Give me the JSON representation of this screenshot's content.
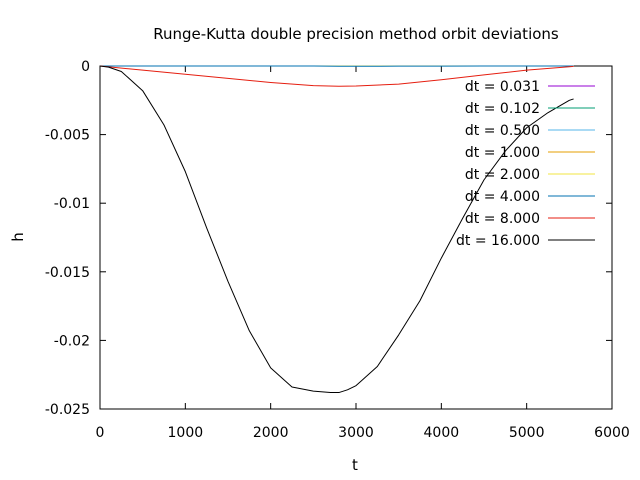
{
  "chart_data": {
    "type": "line",
    "title": "Runge-Kutta double precision method orbit deviations",
    "xlabel": "t",
    "ylabel": "h",
    "xlim": [
      0,
      6000
    ],
    "ylim": [
      -0.025,
      0
    ],
    "xticks": [
      0,
      1000,
      2000,
      3000,
      4000,
      5000,
      6000
    ],
    "xtick_labels": [
      "0",
      "1000",
      "2000",
      "3000",
      "4000",
      "5000",
      "6000"
    ],
    "yticks": [
      0,
      -0.005,
      -0.01,
      -0.015,
      -0.02,
      -0.025
    ],
    "ytick_labels": [
      "0",
      "-0.005",
      "-0.01",
      "-0.015",
      "-0.02",
      "-0.025"
    ],
    "grid": false,
    "legend_position": "top-right",
    "series": [
      {
        "name": "dt = 0.031",
        "color": "#9400d3",
        "x": [
          0,
          500,
          1000,
          1500,
          2000,
          2500,
          2800,
          3000,
          3500,
          4000,
          4500,
          5000,
          5500,
          5550
        ],
        "y": [
          0,
          0,
          0,
          0,
          0,
          0,
          0,
          0,
          0,
          0,
          0,
          0,
          0,
          0
        ]
      },
      {
        "name": "dt = 0.102",
        "color": "#009e73",
        "x": [
          0,
          500,
          1000,
          1500,
          2000,
          2500,
          2800,
          3000,
          3500,
          4000,
          4500,
          5000,
          5500,
          5550
        ],
        "y": [
          0,
          0,
          0,
          0,
          0,
          0,
          0,
          0,
          0,
          0,
          0,
          0,
          0,
          0
        ]
      },
      {
        "name": "dt = 0.500",
        "color": "#56b4e9",
        "x": [
          0,
          500,
          1000,
          1500,
          2000,
          2500,
          2800,
          3000,
          3500,
          4000,
          4500,
          5000,
          5500,
          5550
        ],
        "y": [
          0,
          0,
          0,
          0,
          0,
          0,
          0,
          0,
          0,
          0,
          0,
          0,
          0,
          0
        ]
      },
      {
        "name": "dt = 1.000",
        "color": "#e69f00",
        "x": [
          0,
          500,
          1000,
          1500,
          2000,
          2500,
          2800,
          3000,
          3500,
          4000,
          4500,
          5000,
          5500,
          5550
        ],
        "y": [
          0,
          0,
          0,
          0,
          0,
          0,
          0,
          0,
          0,
          0,
          0,
          0,
          0,
          0
        ]
      },
      {
        "name": "dt = 2.000",
        "color": "#f0e442",
        "x": [
          0,
          500,
          1000,
          1500,
          2000,
          2500,
          2800,
          3000,
          3500,
          4000,
          4500,
          5000,
          5500,
          5550
        ],
        "y": [
          0,
          0,
          0,
          0,
          0,
          0,
          0,
          0,
          0,
          0,
          0,
          0,
          0,
          0
        ]
      },
      {
        "name": "dt = 4.000",
        "color": "#0072b2",
        "x": [
          0,
          500,
          1000,
          1500,
          2000,
          2500,
          2800,
          3000,
          3500,
          4000,
          4500,
          5000,
          5500,
          5550
        ],
        "y": [
          0,
          0,
          0,
          0,
          0,
          0,
          -2e-05,
          -2e-05,
          -1e-05,
          -1e-05,
          0,
          0,
          0,
          0
        ]
      },
      {
        "name": "dt = 8.000",
        "color": "#e51e10",
        "x": [
          0,
          500,
          1000,
          1500,
          2000,
          2500,
          2800,
          3000,
          3500,
          4000,
          4500,
          5000,
          5500,
          5550
        ],
        "y": [
          0,
          -0.0003,
          -0.0006,
          -0.0009,
          -0.0012,
          -0.00143,
          -0.00148,
          -0.00146,
          -0.00132,
          -0.001,
          -0.00065,
          -0.0003,
          -5e-05,
          -3e-05
        ]
      },
      {
        "name": "dt = 16.000",
        "color": "#000000",
        "x": [
          0,
          100,
          250,
          500,
          750,
          1000,
          1250,
          1500,
          1750,
          2000,
          2250,
          2500,
          2700,
          2800,
          2900,
          3000,
          3250,
          3500,
          3750,
          4000,
          4250,
          4500,
          4750,
          5000,
          5250,
          5500,
          5550
        ],
        "y": [
          0,
          -8e-05,
          -0.0004,
          -0.0018,
          -0.0043,
          -0.0077,
          -0.0118,
          -0.0157,
          -0.0193,
          -0.022,
          -0.0234,
          -0.0237,
          -0.0238,
          -0.0238,
          -0.0236,
          -0.0233,
          -0.0219,
          -0.0196,
          -0.0171,
          -0.014,
          -0.0111,
          -0.0083,
          -0.0062,
          -0.0045,
          -0.0034,
          -0.0025,
          -0.0024
        ]
      }
    ]
  }
}
